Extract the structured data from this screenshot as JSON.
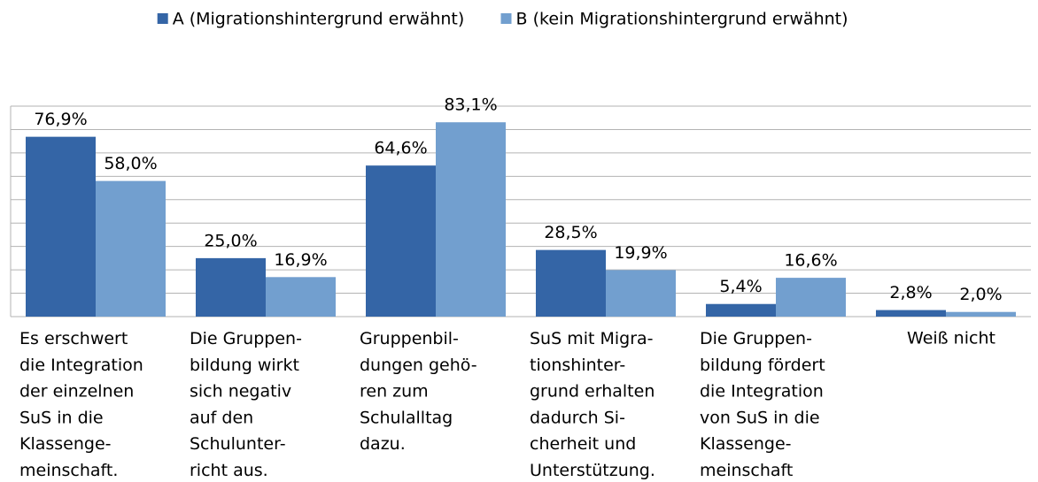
{
  "chart_data": {
    "type": "bar",
    "categories": [
      "Es erschwert\ndie Integration\nder einzelnen\nSuS in die\nKlassenge-\nmeinschaft.",
      "Die Gruppen-\nbildung wirkt\nsich negativ\nauf den\nSchulunter-\nricht aus.",
      "Gruppenbil-\ndungen gehö-\nren zum\nSchulalltag\ndazu.",
      "SuS mit Migra-\ntionshinter-\ngrund erhalten\ndadurch Si-\ncherheit und\nUnterstützung.",
      "Die Gruppen-\nbildung fördert\ndie Integration\nvon SuS in die\nKlassenge-\nmeinschaft",
      "Weiß nicht"
    ],
    "series": [
      {
        "name": "A (Migrationshintergrund erwähnt)",
        "color": "#3465a6",
        "values": [
          76.9,
          25.0,
          64.6,
          28.5,
          5.4,
          2.8
        ],
        "value_labels": [
          "76,9%",
          "25,0%",
          "64,6%",
          "28,5%",
          "5,4%",
          "2,8%"
        ]
      },
      {
        "name": "B (kein Migrationshintergrund erwähnt)",
        "color": "#729fcf",
        "values": [
          58.0,
          16.9,
          83.1,
          19.9,
          16.6,
          2.0
        ],
        "value_labels": [
          "58,0%",
          "16,9%",
          "83,1%",
          "19,9%",
          "16,6%",
          "2,0%"
        ]
      }
    ],
    "ylim": [
      0,
      90
    ],
    "yticks": [
      0,
      10,
      20,
      30,
      40,
      50,
      60,
      70,
      80,
      90
    ],
    "grid": true,
    "legend": "top"
  }
}
